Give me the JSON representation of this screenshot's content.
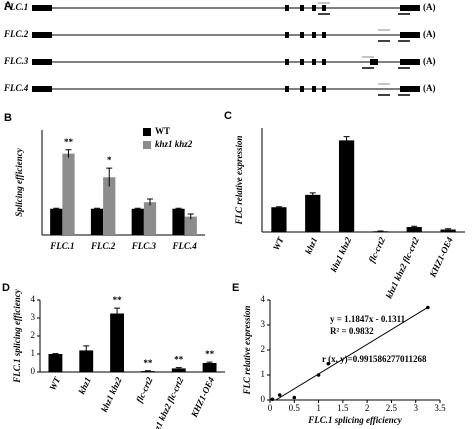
{
  "gene_models": {
    "panel": "A",
    "rows": [
      {
        "label": "FLC.1",
        "tail": "(A)"
      },
      {
        "label": "FLC.2",
        "tail": "(A)"
      },
      {
        "label": "FLC.3",
        "tail": "(A)"
      },
      {
        "label": "FLC.4",
        "tail": "(A)"
      }
    ]
  },
  "chart_data": [
    {
      "type": "bar",
      "panel": "B",
      "ylabel": "Splicing efficiency",
      "categories": [
        "FLC.1",
        "FLC.2",
        "FLC.3",
        "FLC.4"
      ],
      "series": [
        {
          "name": "WT",
          "color": "#000000",
          "values": [
            1,
            1,
            1,
            1
          ],
          "errors": [
            0.02,
            0.02,
            0.02,
            0.02
          ],
          "significance": [
            null,
            null,
            null,
            null
          ]
        },
        {
          "name": "khz1 khz2",
          "color": "#8c8c8c",
          "values": [
            3.1,
            2.2,
            1.25,
            0.7
          ],
          "errors": [
            0.15,
            0.35,
            0.12,
            0.1
          ],
          "significance": [
            "**",
            "*",
            null,
            null
          ]
        }
      ],
      "ylim": [
        0,
        4
      ],
      "legend": "upper-right"
    },
    {
      "type": "bar",
      "panel": "C",
      "ylabel": "FLC relative expression",
      "categories": [
        "WT",
        "khz1",
        "khz1 khz2",
        "flc-crt2",
        "khz1 khz2 flc-crt2",
        "KHZ1-OE4"
      ],
      "series": [
        {
          "name": null,
          "color": "#000000",
          "values": [
            1,
            1.5,
            3.7,
            0.03,
            0.2,
            0.1
          ],
          "errors": [
            0.02,
            0.08,
            0.15,
            0.01,
            0.03,
            0.03
          ],
          "significance": [
            null,
            null,
            null,
            null,
            null,
            null
          ]
        }
      ],
      "ylim": [
        0,
        4.2
      ]
    },
    {
      "type": "bar",
      "panel": "D",
      "ylabel": "FLC.1 splicing efficiency",
      "categories": [
        "WT",
        "khz1",
        "khz1 khz2",
        "flc-crt2",
        "khz1 khz2 flc-crt2",
        "KHZ1-OE4"
      ],
      "series": [
        {
          "name": null,
          "color": "#000000",
          "values": [
            1,
            1.2,
            3.25,
            0.05,
            0.2,
            0.5
          ],
          "errors": [
            0.02,
            0.25,
            0.3,
            0.02,
            0.04,
            0.05
          ],
          "significance": [
            null,
            null,
            "**",
            "**",
            "**",
            "**"
          ]
        }
      ],
      "ylim": [
        0,
        4
      ],
      "yticks": [
        0,
        1,
        2,
        3,
        4
      ]
    },
    {
      "type": "scatter",
      "panel": "E",
      "xlabel": "FLC.1 splicing efficiency",
      "ylabel": "FLC relative expression",
      "x": [
        1,
        1.2,
        3.25,
        0.05,
        0.2,
        0.5
      ],
      "values": [
        1,
        1.45,
        3.7,
        0.03,
        0.2,
        0.1
      ],
      "color": "#000000",
      "xlim": [
        0,
        3.5
      ],
      "xticks": [
        0,
        0.5,
        1,
        1.5,
        2,
        2.5,
        3,
        3.5
      ],
      "ylim": [
        0,
        4
      ],
      "yticks": [
        0,
        1,
        2,
        3,
        4
      ],
      "annotations": [
        "y = 1.1847x - 0.1311",
        "R² = 0.9832",
        "r (x, y)=0.991586277011268"
      ]
    }
  ]
}
